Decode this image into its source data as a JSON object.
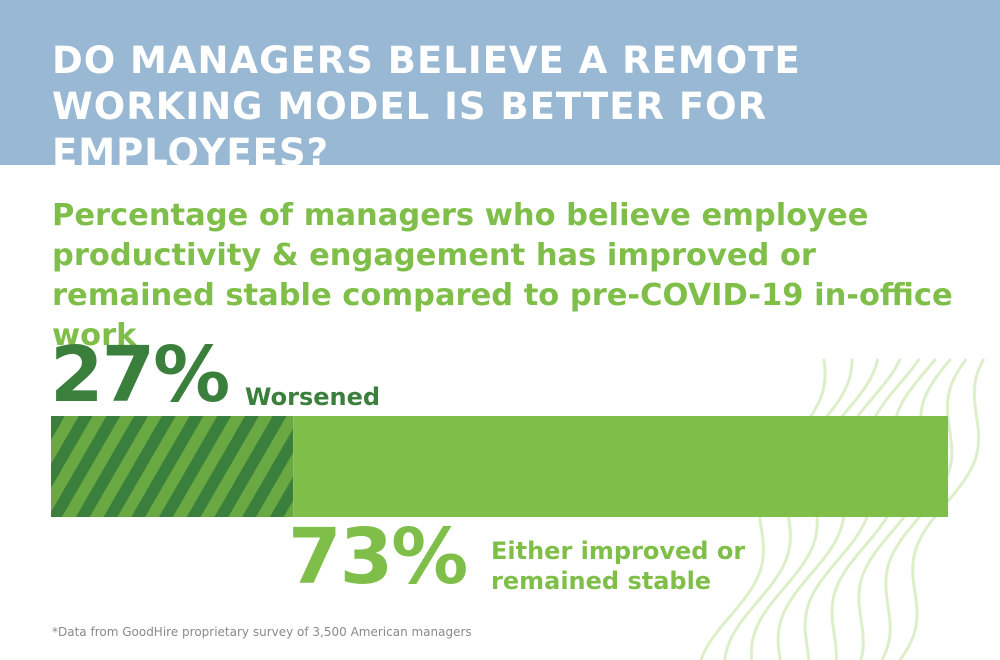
{
  "header": {
    "title": "DO MANAGERS BELIEVE A REMOTE WORKING MODEL IS BETTER FOR EMPLOYEES?",
    "background_color": "#98b8d3"
  },
  "subtitle": "Percentage of managers who believe employee productivity & engagement has improved or remained stable compared to pre-COVID-19 in-office work",
  "chart_data": {
    "type": "bar",
    "orientation": "horizontal",
    "stacked": true,
    "categories": [
      "Worsened",
      "Either improved or remained stable"
    ],
    "values": [
      27,
      73
    ],
    "unit": "%",
    "colors": [
      "#3b7f3c",
      "#7fbf49"
    ],
    "worsened_pattern": "diagonal-stripes",
    "worsened": {
      "value_label": "27%",
      "label": "Worsened"
    },
    "improved": {
      "value_label": "73%",
      "label": "Either improved or remained stable"
    }
  },
  "colors": {
    "dark_green": "#3b7f3c",
    "light_green": "#7fbf49",
    "stripe_alt": "#6aa843",
    "wave_lines": "#dcefc9"
  },
  "footnote": "*Data from GoodHire proprietary survey of 3,500 American managers"
}
